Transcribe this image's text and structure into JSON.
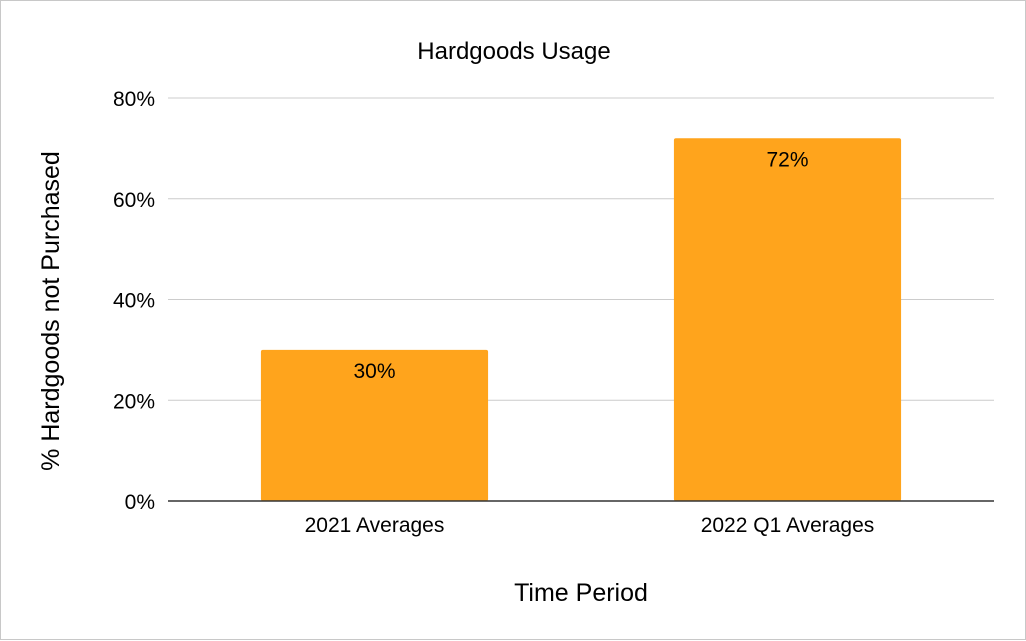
{
  "chart_data": {
    "type": "bar",
    "title": "Hardgoods Usage",
    "xlabel": "Time Period",
    "ylabel": "% Hardgoods not Purchased",
    "categories": [
      "2021 Averages",
      "2022 Q1 Averages"
    ],
    "values": [
      30,
      72
    ],
    "data_labels": [
      "30%",
      "72%"
    ],
    "ylim": [
      0,
      80
    ],
    "yticks": [
      0,
      20,
      40,
      60,
      80
    ],
    "ytick_labels": [
      "0%",
      "20%",
      "40%",
      "60%",
      "80%"
    ],
    "grid": true,
    "legend": "none",
    "bar_color": "#FFA41C",
    "grid_color": "#CCCCCC",
    "axis_color": "#333333"
  }
}
